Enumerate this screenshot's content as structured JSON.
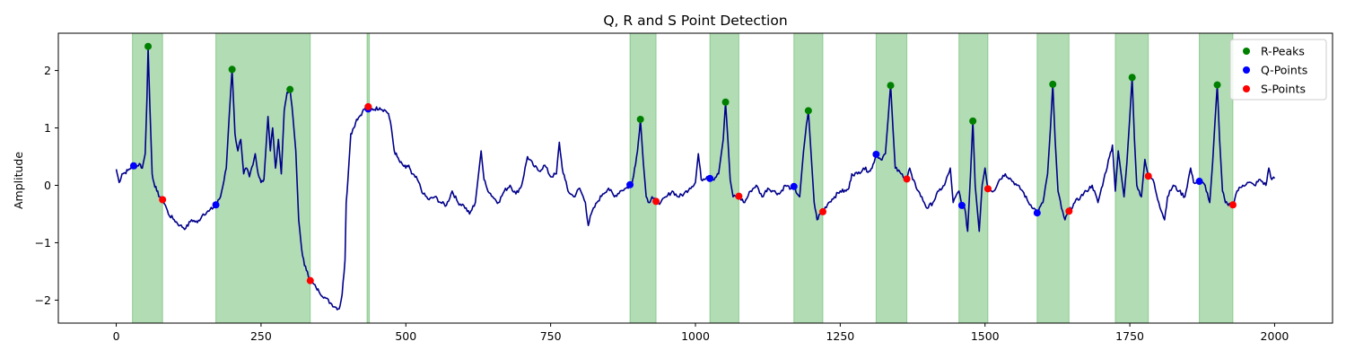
{
  "chart_data": {
    "type": "line",
    "title": "Q, R and S Point Detection",
    "xlabel": "",
    "ylabel": "Amplitude",
    "xlim": [
      -100,
      2100
    ],
    "ylim": [
      -2.4,
      2.65
    ],
    "xticks": [
      0,
      250,
      500,
      750,
      1000,
      1250,
      1500,
      1750,
      2000
    ],
    "yticks": [
      -2,
      -1,
      0,
      1,
      2
    ],
    "tick_labels": {
      "x": [
        "0",
        "250",
        "500",
        "750",
        "1000",
        "1250",
        "1500",
        "1750",
        "2000"
      ],
      "y": [
        "−2",
        "−1",
        "0",
        "1",
        "2"
      ]
    },
    "grid": false,
    "legend_position": "top-right",
    "colors": {
      "signal": "#00008b",
      "r_peaks": "#008000",
      "q_points": "#0000ff",
      "s_points": "#ff0000",
      "qrs_span": "#4caf50"
    },
    "signal_keypoints": [
      [
        0,
        0.28
      ],
      [
        5,
        0.05
      ],
      [
        10,
        0.2
      ],
      [
        15,
        0.22
      ],
      [
        20,
        0.26
      ],
      [
        25,
        0.3
      ],
      [
        30,
        0.34
      ],
      [
        35,
        0.32
      ],
      [
        40,
        0.38
      ],
      [
        45,
        0.3
      ],
      [
        50,
        0.55
      ],
      [
        53,
        1.5
      ],
      [
        55,
        2.4
      ],
      [
        58,
        1.4
      ],
      [
        62,
        0.2
      ],
      [
        65,
        0.05
      ],
      [
        70,
        -0.1
      ],
      [
        75,
        -0.2
      ],
      [
        80,
        -0.25
      ],
      [
        85,
        -0.35
      ],
      [
        90,
        -0.5
      ],
      [
        100,
        -0.6
      ],
      [
        110,
        -0.7
      ],
      [
        120,
        -0.75
      ],
      [
        130,
        -0.6
      ],
      [
        140,
        -0.65
      ],
      [
        150,
        -0.5
      ],
      [
        160,
        -0.45
      ],
      [
        172,
        -0.35
      ],
      [
        180,
        -0.2
      ],
      [
        190,
        0.3
      ],
      [
        195,
        1.2
      ],
      [
        200,
        2.02
      ],
      [
        205,
        0.9
      ],
      [
        210,
        0.6
      ],
      [
        215,
        0.8
      ],
      [
        220,
        0.2
      ],
      [
        225,
        0.3
      ],
      [
        230,
        0.15
      ],
      [
        240,
        0.55
      ],
      [
        245,
        0.2
      ],
      [
        250,
        0.05
      ],
      [
        255,
        0.1
      ],
      [
        262,
        1.2
      ],
      [
        266,
        0.6
      ],
      [
        270,
        1.0
      ],
      [
        275,
        0.3
      ],
      [
        280,
        0.8
      ],
      [
        285,
        0.2
      ],
      [
        290,
        1.3
      ],
      [
        295,
        1.62
      ],
      [
        300,
        1.68
      ],
      [
        305,
        1.2
      ],
      [
        310,
        0.6
      ],
      [
        315,
        -0.6
      ],
      [
        320,
        -1.1
      ],
      [
        325,
        -1.4
      ],
      [
        330,
        -1.5
      ],
      [
        335,
        -1.66
      ],
      [
        345,
        -1.78
      ],
      [
        350,
        -1.85
      ],
      [
        360,
        -1.95
      ],
      [
        370,
        -2.05
      ],
      [
        378,
        -2.12
      ],
      [
        385,
        -2.15
      ],
      [
        390,
        -1.9
      ],
      [
        395,
        -1.3
      ],
      [
        397,
        -0.3
      ],
      [
        400,
        0.1
      ],
      [
        405,
        0.9
      ],
      [
        410,
        1.0
      ],
      [
        415,
        1.15
      ],
      [
        420,
        1.2
      ],
      [
        425,
        1.28
      ],
      [
        430,
        1.35
      ],
      [
        440,
        1.32
      ],
      [
        455,
        1.35
      ],
      [
        465,
        1.3
      ],
      [
        470,
        1.25
      ],
      [
        475,
        1.0
      ],
      [
        480,
        0.6
      ],
      [
        485,
        0.5
      ],
      [
        490,
        0.4
      ],
      [
        495,
        0.35
      ],
      [
        500,
        0.3
      ],
      [
        505,
        0.35
      ],
      [
        510,
        0.2
      ],
      [
        520,
        0.1
      ],
      [
        530,
        -0.15
      ],
      [
        540,
        -0.25
      ],
      [
        550,
        -0.2
      ],
      [
        560,
        -0.3
      ],
      [
        570,
        -0.35
      ],
      [
        580,
        -0.1
      ],
      [
        590,
        -0.3
      ],
      [
        600,
        -0.35
      ],
      [
        610,
        -0.5
      ],
      [
        620,
        -0.3
      ],
      [
        630,
        0.6
      ],
      [
        635,
        0.1
      ],
      [
        640,
        -0.05
      ],
      [
        650,
        -0.2
      ],
      [
        660,
        -0.3
      ],
      [
        670,
        -0.1
      ],
      [
        680,
        0.0
      ],
      [
        690,
        -0.15
      ],
      [
        700,
        0.0
      ],
      [
        710,
        0.5
      ],
      [
        720,
        0.35
      ],
      [
        730,
        0.25
      ],
      [
        740,
        0.35
      ],
      [
        750,
        0.15
      ],
      [
        760,
        0.2
      ],
      [
        765,
        0.75
      ],
      [
        770,
        0.3
      ],
      [
        775,
        0.1
      ],
      [
        780,
        -0.1
      ],
      [
        790,
        -0.2
      ],
      [
        800,
        -0.05
      ],
      [
        810,
        -0.3
      ],
      [
        815,
        -0.7
      ],
      [
        820,
        -0.5
      ],
      [
        830,
        -0.3
      ],
      [
        840,
        -0.15
      ],
      [
        850,
        -0.05
      ],
      [
        860,
        -0.2
      ],
      [
        870,
        -0.1
      ],
      [
        880,
        -0.05
      ],
      [
        890,
        0.0
      ],
      [
        895,
        0.3
      ],
      [
        900,
        0.6
      ],
      [
        905,
        1.15
      ],
      [
        910,
        0.4
      ],
      [
        915,
        -0.2
      ],
      [
        920,
        -0.3
      ],
      [
        925,
        -0.2
      ],
      [
        932,
        -0.28
      ],
      [
        940,
        -0.3
      ],
      [
        950,
        -0.2
      ],
      [
        960,
        -0.1
      ],
      [
        970,
        -0.2
      ],
      [
        980,
        -0.15
      ],
      [
        990,
        -0.05
      ],
      [
        1000,
        0.05
      ],
      [
        1005,
        0.55
      ],
      [
        1010,
        0.1
      ],
      [
        1020,
        0.15
      ],
      [
        1030,
        0.1
      ],
      [
        1040,
        0.2
      ],
      [
        1048,
        0.8
      ],
      [
        1052,
        1.45
      ],
      [
        1056,
        0.8
      ],
      [
        1060,
        0.1
      ],
      [
        1065,
        -0.2
      ],
      [
        1075,
        -0.2
      ],
      [
        1085,
        -0.3
      ],
      [
        1095,
        -0.1
      ],
      [
        1105,
        0.0
      ],
      [
        1115,
        -0.2
      ],
      [
        1125,
        -0.05
      ],
      [
        1135,
        -0.1
      ],
      [
        1145,
        -0.15
      ],
      [
        1155,
        0.0
      ],
      [
        1165,
        -0.05
      ],
      [
        1170,
        -0.05
      ],
      [
        1180,
        -0.2
      ],
      [
        1185,
        0.4
      ],
      [
        1190,
        0.9
      ],
      [
        1195,
        1.3
      ],
      [
        1200,
        0.5
      ],
      [
        1205,
        -0.3
      ],
      [
        1210,
        -0.6
      ],
      [
        1215,
        -0.5
      ],
      [
        1220,
        -0.45
      ],
      [
        1230,
        -0.3
      ],
      [
        1240,
        -0.2
      ],
      [
        1250,
        -0.1
      ],
      [
        1260,
        -0.1
      ],
      [
        1265,
        -0.05
      ],
      [
        1270,
        0.2
      ],
      [
        1280,
        0.2
      ],
      [
        1290,
        0.3
      ],
      [
        1300,
        0.25
      ],
      [
        1305,
        0.3
      ],
      [
        1312,
        0.55
      ],
      [
        1320,
        0.45
      ],
      [
        1328,
        0.55
      ],
      [
        1333,
        1.2
      ],
      [
        1337,
        1.75
      ],
      [
        1341,
        1.0
      ],
      [
        1345,
        0.3
      ],
      [
        1355,
        0.2
      ],
      [
        1365,
        0.12
      ],
      [
        1370,
        0.3
      ],
      [
        1375,
        0.1
      ],
      [
        1385,
        -0.1
      ],
      [
        1395,
        -0.3
      ],
      [
        1400,
        -0.4
      ],
      [
        1410,
        -0.3
      ],
      [
        1420,
        -0.1
      ],
      [
        1430,
        0.0
      ],
      [
        1440,
        0.3
      ],
      [
        1445,
        -0.3
      ],
      [
        1455,
        -0.1
      ],
      [
        1460,
        -0.35
      ],
      [
        1465,
        -0.4
      ],
      [
        1470,
        -0.8
      ],
      [
        1475,
        0.2
      ],
      [
        1479,
        1.12
      ],
      [
        1483,
        0.0
      ],
      [
        1490,
        -0.8
      ],
      [
        1495,
        0.0
      ],
      [
        1500,
        0.3
      ],
      [
        1505,
        -0.05
      ],
      [
        1515,
        -0.1
      ],
      [
        1525,
        0.1
      ],
      [
        1535,
        0.2
      ],
      [
        1545,
        0.1
      ],
      [
        1555,
        0.0
      ],
      [
        1565,
        -0.1
      ],
      [
        1575,
        -0.3
      ],
      [
        1585,
        -0.4
      ],
      [
        1590,
        -0.48
      ],
      [
        1600,
        -0.3
      ],
      [
        1608,
        0.2
      ],
      [
        1613,
        1.0
      ],
      [
        1617,
        1.76
      ],
      [
        1621,
        0.8
      ],
      [
        1626,
        -0.1
      ],
      [
        1632,
        -0.4
      ],
      [
        1638,
        -0.6
      ],
      [
        1645,
        -0.45
      ],
      [
        1655,
        -0.3
      ],
      [
        1665,
        -0.2
      ],
      [
        1675,
        -0.1
      ],
      [
        1685,
        0.0
      ],
      [
        1695,
        -0.3
      ],
      [
        1705,
        0.1
      ],
      [
        1715,
        0.5
      ],
      [
        1720,
        0.7
      ],
      [
        1725,
        -0.1
      ],
      [
        1730,
        0.6
      ],
      [
        1740,
        -0.2
      ],
      [
        1745,
        0.4
      ],
      [
        1750,
        1.2
      ],
      [
        1754,
        1.88
      ],
      [
        1758,
        0.8
      ],
      [
        1762,
        0.0
      ],
      [
        1770,
        -0.2
      ],
      [
        1776,
        0.45
      ],
      [
        1782,
        0.16
      ],
      [
        1790,
        0.1
      ],
      [
        1800,
        -0.3
      ],
      [
        1810,
        -0.6
      ],
      [
        1815,
        -0.2
      ],
      [
        1825,
        0.0
      ],
      [
        1835,
        -0.1
      ],
      [
        1845,
        -0.2
      ],
      [
        1855,
        0.3
      ],
      [
        1860,
        0.05
      ],
      [
        1870,
        0.08
      ],
      [
        1880,
        0.0
      ],
      [
        1888,
        -0.3
      ],
      [
        1893,
        0.4
      ],
      [
        1897,
        1.1
      ],
      [
        1901,
        1.75
      ],
      [
        1905,
        0.8
      ],
      [
        1910,
        -0.1
      ],
      [
        1915,
        -0.3
      ],
      [
        1920,
        -0.35
      ],
      [
        1928,
        -0.33
      ],
      [
        1935,
        -0.1
      ],
      [
        1945,
        0.0
      ],
      [
        1955,
        0.05
      ],
      [
        1965,
        0.0
      ],
      [
        1975,
        0.1
      ],
      [
        1985,
        0.0
      ],
      [
        1990,
        0.3
      ],
      [
        1995,
        0.1
      ],
      [
        2000,
        0.12
      ]
    ],
    "series": [
      {
        "name": "R-Peaks",
        "x": [
          55,
          200,
          300,
          435,
          905,
          1052,
          1195,
          1337,
          1479,
          1617,
          1754,
          1901
        ],
        "y": [
          2.42,
          2.02,
          1.67,
          1.36,
          1.15,
          1.45,
          1.3,
          1.74,
          1.12,
          1.76,
          1.88,
          1.75
        ]
      },
      {
        "name": "Q-Points",
        "x": [
          30,
          172,
          435,
          887,
          1025,
          1170,
          1312,
          1460,
          1590,
          1870
        ],
        "y": [
          0.34,
          -0.34,
          1.33,
          0.01,
          0.12,
          -0.02,
          0.54,
          -0.35,
          -0.48,
          0.07
        ]
      },
      {
        "name": "S-Points",
        "x": [
          80,
          335,
          435,
          932,
          1075,
          1220,
          1365,
          1505,
          1645,
          1782,
          1928
        ],
        "y": [
          -0.25,
          -1.66,
          1.37,
          -0.28,
          -0.19,
          -0.46,
          0.11,
          -0.06,
          -0.45,
          0.16,
          -0.34
        ]
      }
    ],
    "qrs_spans": [
      [
        28,
        80
      ],
      [
        172,
        335
      ],
      [
        433,
        437
      ],
      [
        887,
        932
      ],
      [
        1025,
        1075
      ],
      [
        1170,
        1220
      ],
      [
        1312,
        1365
      ],
      [
        1455,
        1505
      ],
      [
        1590,
        1645
      ],
      [
        1725,
        1782
      ],
      [
        1870,
        1928
      ]
    ]
  }
}
